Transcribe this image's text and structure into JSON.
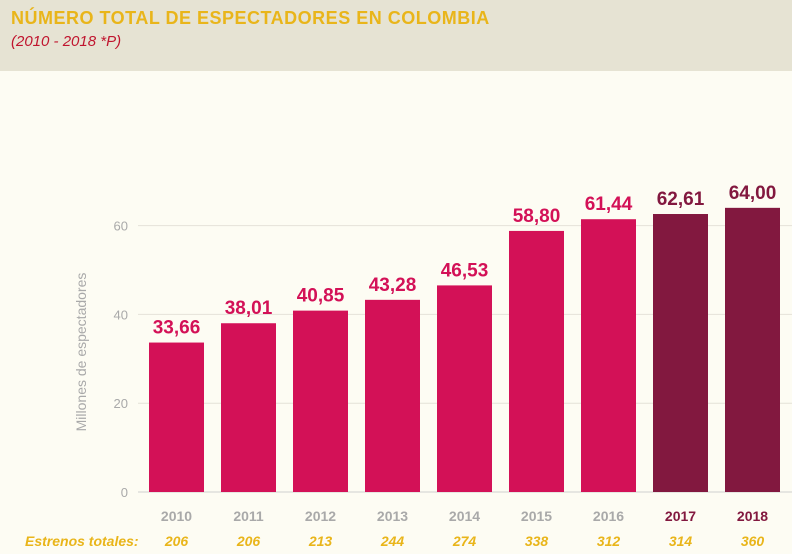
{
  "title": "NÚMERO TOTAL DE ESPECTADORES EN COLOMBIA",
  "subtitle": "(2010 - 2018 *P)",
  "colors": {
    "title": "#e9b51a",
    "subtitle": "#c0152e",
    "bar_primary": "#d31157",
    "bar_highlight": "#82183f",
    "axis_text": "#a9a9a9",
    "releases_text": "#e9b51a"
  },
  "chart_data": {
    "type": "bar",
    "categories": [
      "2010",
      "2011",
      "2012",
      "2013",
      "2014",
      "2015",
      "2016",
      "2017",
      "2018"
    ],
    "values": [
      33.66,
      38.01,
      40.85,
      43.28,
      46.53,
      58.8,
      61.44,
      62.61,
      64.0
    ],
    "value_labels": [
      "33,66",
      "38,01",
      "40,85",
      "43,28",
      "46,53",
      "58,80",
      "61,44",
      "62,61",
      "64,00"
    ],
    "highlighted_categories": [
      "2017",
      "2018"
    ],
    "ylabel": "Millones de espectadores",
    "yticks": [
      "0",
      "20",
      "40",
      "60"
    ],
    "ylim": [
      0,
      70
    ],
    "grid": true,
    "releases_label": "Estrenos totales:",
    "releases": [
      "206",
      "206",
      "213",
      "244",
      "274",
      "338",
      "312",
      "314",
      "360"
    ]
  }
}
